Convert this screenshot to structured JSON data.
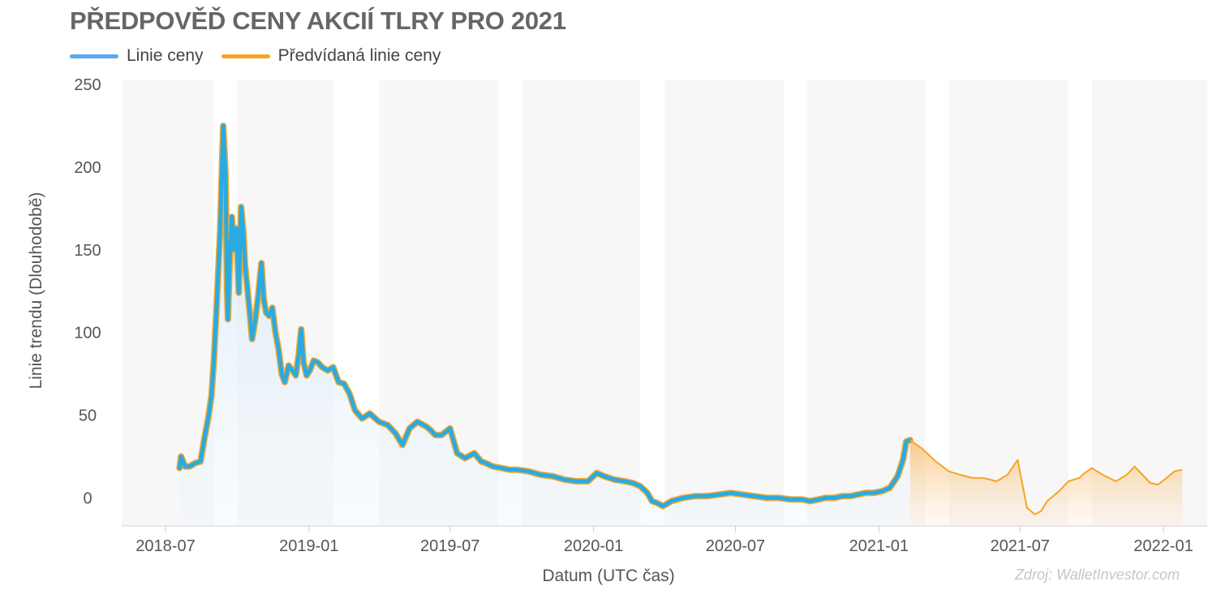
{
  "chart_data": {
    "type": "line",
    "title": "PŘEDPOVĚĎ CENY AKCIÍ TLRY PRO 2021",
    "xlabel": "Datum (UTC čas)",
    "ylabel": "Linie trendu (Dlouhodobě)",
    "ylim": [
      -17,
      253
    ],
    "yticks": [
      "0",
      "50",
      "100",
      "150",
      "200",
      "250"
    ],
    "xticks": [
      "2018-07",
      "2019-01",
      "2019-07",
      "2020-01",
      "2020-07",
      "2021-01",
      "2021-07",
      "2022-01"
    ],
    "grid": "alternating vertical bands",
    "legend": "top-left",
    "source": "Zdroj: WalletInvestor.com",
    "colors": {
      "price": "#29abe2",
      "price_edge": "#f0a830",
      "forecast": "#f5a623",
      "band": "#f7f7f7"
    },
    "series": [
      {
        "name": "Linie ceny",
        "x": [
          "2018-07-19",
          "2018-07-21",
          "2018-07-26",
          "2018-08-01",
          "2018-08-08",
          "2018-08-15",
          "2018-08-20",
          "2018-08-25",
          "2018-08-29",
          "2018-09-01",
          "2018-09-05",
          "2018-09-09",
          "2018-09-13",
          "2018-09-16",
          "2018-09-18",
          "2018-09-19",
          "2018-09-21",
          "2018-09-24",
          "2018-09-27",
          "2018-09-30",
          "2018-10-03",
          "2018-10-06",
          "2018-10-09",
          "2018-10-11",
          "2018-10-14",
          "2018-10-17",
          "2018-10-20",
          "2018-10-24",
          "2018-10-28",
          "2018-11-01",
          "2018-11-04",
          "2018-11-07",
          "2018-11-11",
          "2018-11-15",
          "2018-11-19",
          "2018-11-23",
          "2018-11-27",
          "2018-12-01",
          "2018-12-06",
          "2018-12-11",
          "2018-12-15",
          "2018-12-19",
          "2018-12-22",
          "2018-12-25",
          "2018-12-29",
          "2019-01-02",
          "2019-01-07",
          "2019-01-12",
          "2019-01-18",
          "2019-01-25",
          "2019-02-01",
          "2019-02-08",
          "2019-02-15",
          "2019-02-22",
          "2019-03-01",
          "2019-03-10",
          "2019-03-20",
          "2019-04-01",
          "2019-04-12",
          "2019-04-22",
          "2019-05-01",
          "2019-05-10",
          "2019-05-20",
          "2019-06-01",
          "2019-06-06",
          "2019-06-12",
          "2019-06-20",
          "2019-07-01",
          "2019-07-10",
          "2019-07-20",
          "2019-08-01",
          "2019-08-10",
          "2019-08-16",
          "2019-08-25",
          "2019-09-05",
          "2019-09-15",
          "2019-09-25",
          "2019-10-10",
          "2019-10-25",
          "2019-11-10",
          "2019-11-25",
          "2019-12-10",
          "2019-12-25",
          "2020-01-05",
          "2020-01-15",
          "2020-01-28",
          "2020-02-10",
          "2020-02-20",
          "2020-03-01",
          "2020-03-10",
          "2020-03-16",
          "2020-03-22",
          "2020-03-30",
          "2020-04-10",
          "2020-04-25",
          "2020-05-10",
          "2020-05-25",
          "2020-06-10",
          "2020-06-25",
          "2020-07-10",
          "2020-07-25",
          "2020-08-10",
          "2020-08-25",
          "2020-09-10",
          "2020-09-25",
          "2020-10-05",
          "2020-10-15",
          "2020-10-25",
          "2020-11-05",
          "2020-11-15",
          "2020-11-25",
          "2020-12-05",
          "2020-12-15",
          "2020-12-25",
          "2021-01-05",
          "2021-01-15",
          "2021-01-25",
          "2021-02-01",
          "2021-02-05",
          "2021-02-10"
        ],
        "values": [
          18,
          25,
          19,
          19,
          21,
          22,
          36,
          49,
          62,
          83,
          120,
          162,
          225,
          196,
          125,
          108,
          138,
          170,
          150,
          163,
          124,
          176,
          160,
          141,
          127,
          112,
          96,
          107,
          123,
          142,
          120,
          112,
          110,
          115,
          100,
          90,
          75,
          70,
          80,
          77,
          74,
          87,
          102,
          82,
          74,
          77,
          83,
          82,
          79,
          77,
          79,
          70,
          69,
          63,
          53,
          48,
          51,
          46,
          44,
          39,
          32,
          42,
          46,
          43,
          41,
          38,
          38,
          42,
          27,
          24,
          27,
          22,
          21,
          19,
          18,
          17,
          17,
          16,
          14,
          13,
          11,
          10,
          10,
          15,
          13,
          11,
          10,
          9,
          7,
          3,
          -2,
          -3,
          -5,
          -2,
          0,
          1,
          1,
          2,
          3,
          2,
          1,
          0,
          0,
          -1,
          -1,
          -2,
          -1,
          0,
          0,
          1,
          1,
          2,
          3,
          3,
          4,
          6,
          13,
          23,
          34,
          35
        ]
      },
      {
        "name": "Předvídaná linie ceny",
        "x": [
          "2021-02-10",
          "2021-02-25",
          "2021-03-15",
          "2021-04-01",
          "2021-04-15",
          "2021-05-01",
          "2021-05-15",
          "2021-06-01",
          "2021-06-15",
          "2021-06-28",
          "2021-07-05",
          "2021-07-10",
          "2021-07-20",
          "2021-07-28",
          "2021-08-05",
          "2021-08-20",
          "2021-09-01",
          "2021-09-15",
          "2021-09-22",
          "2021-10-01",
          "2021-10-15",
          "2021-11-01",
          "2021-11-15",
          "2021-11-25",
          "2021-12-01",
          "2021-12-15",
          "2021-12-25",
          "2022-01-05",
          "2022-01-15",
          "2022-01-25"
        ],
        "values": [
          35,
          30,
          22,
          16,
          14,
          12,
          12,
          10,
          14,
          23,
          6,
          -6,
          -10,
          -8,
          -2,
          4,
          10,
          12,
          15,
          18,
          14,
          10,
          14,
          19,
          16,
          9,
          8,
          12,
          16,
          17
        ]
      }
    ]
  }
}
